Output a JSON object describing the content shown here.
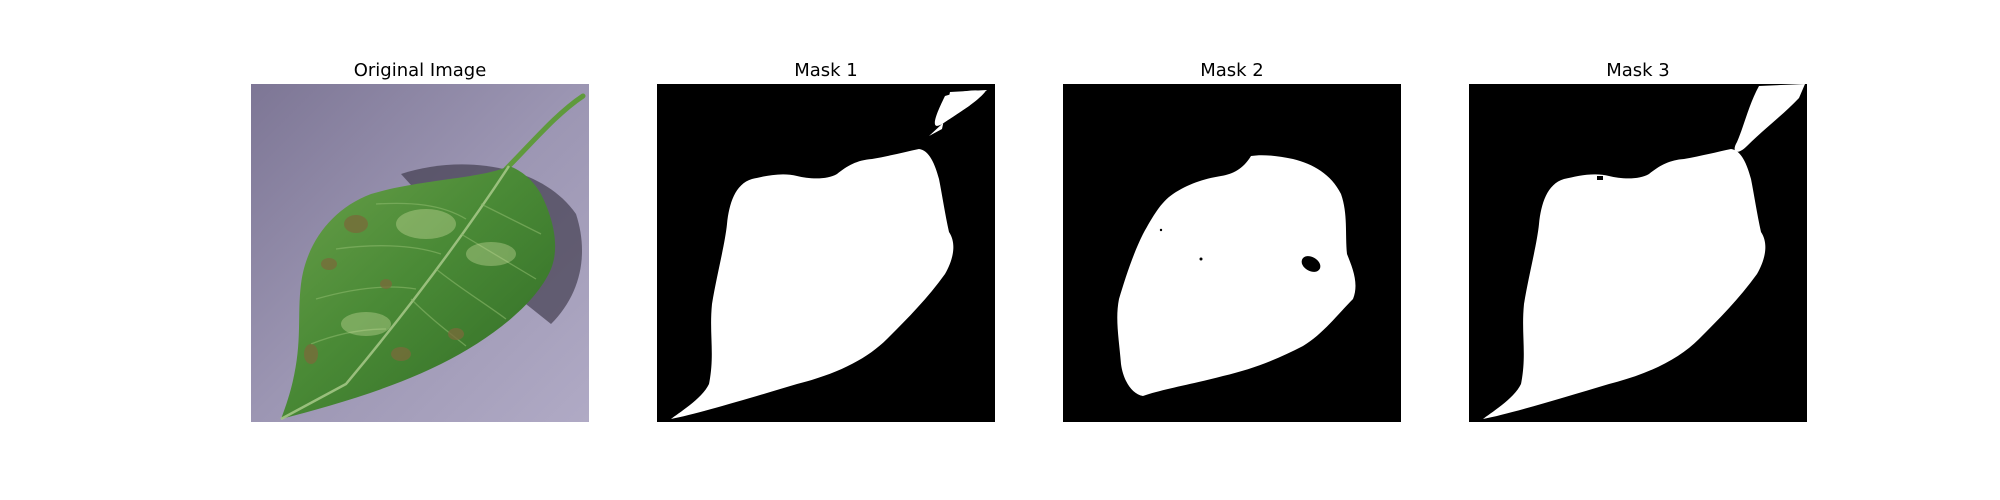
{
  "figure": {
    "panels": [
      {
        "id": "original",
        "title": "Original Image",
        "content": "leaf-photo"
      },
      {
        "id": "mask1",
        "title": "Mask 1",
        "content": "binary-mask"
      },
      {
        "id": "mask2",
        "title": "Mask 2",
        "content": "binary-mask"
      },
      {
        "id": "mask3",
        "title": "Mask 3",
        "content": "binary-mask"
      }
    ]
  },
  "colors": {
    "figure_background": "#ffffff",
    "mask_background": "#000000",
    "mask_foreground": "#ffffff",
    "photo_background": "#8d87a3",
    "leaf_green": "#4f8f3a",
    "leaf_dark": "#2f5f25",
    "leaf_spot": "#7a6a3a"
  }
}
